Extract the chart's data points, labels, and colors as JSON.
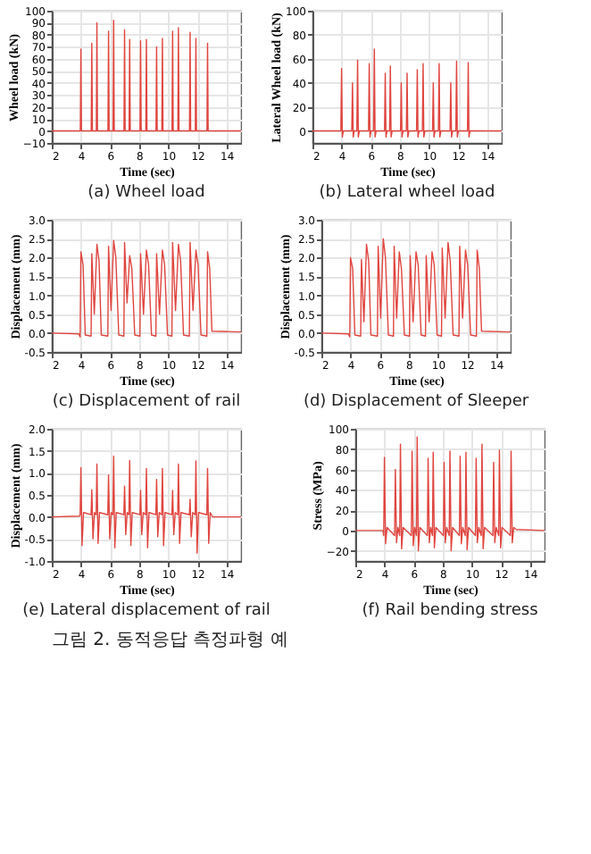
{
  "chart_data": [
    {
      "type": "line",
      "title": "(a)  Wheel  load",
      "xlabel": "Time (sec)",
      "ylabel": "Wheel load (kN)",
      "xlim": [
        2,
        15
      ],
      "xticks": [
        2,
        4,
        6,
        8,
        10,
        12,
        14
      ],
      "ylim": [
        -10,
        100
      ],
      "yticks": [
        -10,
        0,
        10,
        20,
        30,
        40,
        50,
        60,
        70,
        80,
        90,
        100
      ],
      "grid": true,
      "x": [
        2,
        3.96,
        4.0,
        4.04,
        4.71,
        4.75,
        4.79,
        5.06,
        5.1,
        5.14,
        5.86,
        5.9,
        5.94,
        6.21,
        6.25,
        6.29,
        6.96,
        7.0,
        7.04,
        7.31,
        7.35,
        7.39,
        8.06,
        8.1,
        8.14,
        8.46,
        8.5,
        8.54,
        9.16,
        9.2,
        9.24,
        9.56,
        9.6,
        9.64,
        10.26,
        10.3,
        10.34,
        10.66,
        10.7,
        10.74,
        11.46,
        11.5,
        11.54,
        11.86,
        11.9,
        11.94,
        12.66,
        12.7,
        12.74,
        15
      ],
      "series": [
        {
          "color": "#e0453f",
          "values": [
            0,
            0,
            68,
            0,
            0,
            73,
            0,
            0,
            90,
            0,
            0,
            83,
            0,
            0,
            92,
            0,
            0,
            84,
            0,
            0,
            76,
            0,
            0,
            75,
            0,
            0,
            76,
            0,
            0,
            70,
            0,
            0,
            77,
            0,
            0,
            83,
            0,
            0,
            86,
            0,
            0,
            82,
            0,
            0,
            77,
            0,
            0,
            73,
            0,
            0
          ]
        }
      ]
    },
    {
      "type": "line",
      "title": "(b)  Lateral  wheel  load",
      "xlabel": "Time (sec)",
      "ylabel": "Lateral Wheel load (kN)",
      "xlim": [
        2,
        15
      ],
      "xticks": [
        2,
        4,
        6,
        8,
        10,
        12,
        14
      ],
      "ylim": [
        -10,
        100
      ],
      "yticks": [
        0,
        20,
        40,
        60,
        80,
        100
      ],
      "grid": true,
      "x": [
        2,
        3.95,
        4.0,
        4.05,
        4.12,
        4.7,
        4.75,
        4.8,
        4.87,
        5.05,
        5.1,
        5.15,
        5.22,
        5.85,
        5.9,
        5.95,
        6.02,
        6.2,
        6.25,
        6.3,
        6.37,
        6.95,
        7.0,
        7.05,
        7.12,
        7.3,
        7.35,
        7.4,
        7.47,
        8.05,
        8.1,
        8.15,
        8.22,
        8.45,
        8.5,
        8.55,
        8.62,
        9.15,
        9.2,
        9.25,
        9.32,
        9.55,
        9.6,
        9.65,
        9.72,
        10.25,
        10.3,
        10.35,
        10.42,
        10.65,
        10.7,
        10.75,
        10.82,
        11.45,
        11.5,
        11.55,
        11.62,
        11.85,
        11.9,
        11.95,
        12.02,
        12.65,
        12.7,
        12.75,
        12.82,
        15
      ],
      "series": [
        {
          "color": "#e0453f",
          "values": [
            0,
            0,
            52,
            -5,
            0,
            0,
            40,
            -5,
            0,
            0,
            59,
            -5,
            0,
            0,
            56,
            -5,
            0,
            0,
            68,
            -5,
            0,
            0,
            48,
            -5,
            0,
            0,
            54,
            -5,
            0,
            0,
            40,
            -5,
            0,
            0,
            48,
            -5,
            0,
            0,
            51,
            -5,
            0,
            0,
            56,
            -5,
            0,
            0,
            40,
            -5,
            0,
            0,
            56,
            -5,
            0,
            0,
            40,
            -5,
            0,
            0,
            58,
            -5,
            0,
            0,
            57,
            -5,
            0,
            0
          ]
        }
      ]
    },
    {
      "type": "line",
      "title": "(c)  Displacement  of  rail",
      "xlabel": "Time (sec)",
      "ylabel": "Displacement (mm)",
      "xlim": [
        2,
        15
      ],
      "xticks": [
        2,
        4,
        6,
        8,
        10,
        12,
        14
      ],
      "ylim": [
        -0.5,
        3.0
      ],
      "yticks": [
        {
          "value": -0.5,
          "label": "-0.5"
        },
        {
          "value": 0,
          "label": "0.0"
        },
        {
          "value": 0.5,
          "label": "0.5"
        },
        {
          "value": 1,
          "label": "1.0"
        },
        {
          "value": 1.5,
          "label": "1.5"
        },
        {
          "value": 2,
          "label": "2.0"
        },
        {
          "value": 2.5,
          "label": "2.5"
        },
        {
          "value": 3,
          "label": "3.0"
        }
      ],
      "grid": true,
      "x": [
        2,
        3.85,
        3.95,
        4.0,
        4.15,
        4.3,
        4.7,
        4.75,
        4.92,
        5.1,
        5.25,
        5.4,
        5.85,
        5.9,
        6.07,
        6.25,
        6.4,
        6.6,
        6.95,
        7.0,
        7.17,
        7.35,
        7.5,
        7.7,
        8.05,
        8.1,
        8.3,
        8.5,
        8.65,
        8.85,
        9.15,
        9.2,
        9.4,
        9.6,
        9.75,
        9.95,
        10.25,
        10.3,
        10.5,
        10.7,
        10.85,
        11.05,
        11.45,
        11.5,
        11.7,
        11.9,
        12.05,
        12.25,
        12.65,
        12.7,
        12.85,
        13.0,
        15
      ],
      "series": [
        {
          "color": "#e0453f",
          "values": [
            0,
            -0.02,
            -0.1,
            2.15,
            1.8,
            -0.05,
            -0.08,
            2.1,
            0.5,
            2.35,
            1.9,
            -0.05,
            -0.08,
            2.3,
            0.6,
            2.45,
            2.0,
            -0.05,
            -0.08,
            2.4,
            0.8,
            2.05,
            1.7,
            -0.05,
            -0.08,
            2.1,
            0.5,
            2.2,
            1.8,
            -0.05,
            -0.08,
            2.1,
            0.5,
            2.2,
            1.8,
            -0.05,
            -0.08,
            2.4,
            0.6,
            2.35,
            1.9,
            -0.05,
            -0.08,
            2.4,
            0.6,
            2.2,
            1.8,
            -0.05,
            -0.08,
            2.15,
            1.7,
            0.05,
            0.03
          ]
        }
      ]
    },
    {
      "type": "line",
      "title": "(d)  Displacement  of  Sleeper",
      "xlabel": "Time (sec)",
      "ylabel": "Displacement (mm)",
      "xlim": [
        2,
        15
      ],
      "xticks": [
        2,
        4,
        6,
        8,
        10,
        12,
        14
      ],
      "ylim": [
        -0.5,
        3.0
      ],
      "yticks": [
        {
          "value": -0.5,
          "label": "-0.5"
        },
        {
          "value": 0,
          "label": "0.0"
        },
        {
          "value": 0.5,
          "label": "0.5"
        },
        {
          "value": 1,
          "label": "1.0"
        },
        {
          "value": 1.5,
          "label": "1.5"
        },
        {
          "value": 2,
          "label": "2.0"
        },
        {
          "value": 2.5,
          "label": "2.5"
        },
        {
          "value": 3,
          "label": "3.0"
        }
      ],
      "grid": true,
      "x": [
        2,
        3.85,
        3.95,
        4.0,
        4.15,
        4.3,
        4.7,
        4.75,
        4.92,
        5.1,
        5.25,
        5.4,
        5.85,
        5.9,
        6.07,
        6.25,
        6.4,
        6.6,
        6.95,
        7.0,
        7.17,
        7.35,
        7.5,
        7.7,
        8.05,
        8.1,
        8.3,
        8.5,
        8.65,
        8.85,
        9.15,
        9.2,
        9.4,
        9.6,
        9.75,
        9.95,
        10.25,
        10.3,
        10.5,
        10.7,
        10.85,
        11.05,
        11.45,
        11.5,
        11.7,
        11.9,
        12.05,
        12.25,
        12.65,
        12.7,
        12.85,
        13.0,
        15
      ],
      "series": [
        {
          "color": "#e0453f",
          "values": [
            0,
            -0.02,
            -0.1,
            2.0,
            1.7,
            -0.05,
            -0.08,
            1.95,
            0.3,
            2.35,
            1.9,
            -0.05,
            -0.08,
            2.3,
            0.4,
            2.5,
            2.0,
            -0.05,
            -0.08,
            2.3,
            0.4,
            2.15,
            1.7,
            -0.05,
            -0.08,
            2.05,
            0.3,
            2.15,
            1.8,
            -0.05,
            -0.08,
            2.05,
            0.3,
            2.15,
            1.8,
            -0.05,
            -0.08,
            2.25,
            0.4,
            2.4,
            1.9,
            -0.05,
            -0.08,
            2.3,
            0.4,
            2.2,
            1.8,
            -0.05,
            -0.08,
            2.2,
            1.7,
            0.05,
            0.03
          ]
        }
      ]
    },
    {
      "type": "line",
      "title": "(e)  Lateral  displacement  of  rail",
      "xlabel": "Time (sec)",
      "ylabel": "Displacement (mm)",
      "xlim": [
        2,
        15
      ],
      "xticks": [
        2,
        4,
        6,
        8,
        10,
        12,
        14
      ],
      "ylim": [
        -1.0,
        2.0
      ],
      "yticks": [
        {
          "value": -1,
          "label": "-1.0"
        },
        {
          "value": -0.5,
          "label": "-0.5"
        },
        {
          "value": 0,
          "label": "0.0"
        },
        {
          "value": 0.5,
          "label": "0.5"
        },
        {
          "value": 1,
          "label": "1.0"
        },
        {
          "value": 1.5,
          "label": "1.5"
        },
        {
          "value": 2,
          "label": "2.0"
        }
      ],
      "grid": true,
      "annotations": [
        "그림 2. 동적응답 측정파형 예"
      ],
      "x": [
        2,
        3.9,
        3.95,
        4.0,
        4.08,
        4.18,
        4.7,
        4.75,
        4.83,
        4.93,
        5.05,
        5.1,
        5.18,
        5.28,
        5.85,
        5.9,
        5.98,
        6.08,
        6.2,
        6.25,
        6.33,
        6.43,
        6.95,
        7.0,
        7.08,
        7.18,
        7.3,
        7.35,
        7.43,
        7.53,
        8.05,
        8.1,
        8.18,
        8.28,
        8.45,
        8.5,
        8.58,
        8.68,
        9.15,
        9.2,
        9.28,
        9.38,
        9.55,
        9.6,
        9.68,
        9.78,
        10.25,
        10.3,
        10.38,
        10.48,
        10.65,
        10.7,
        10.78,
        10.88,
        11.45,
        11.5,
        11.58,
        11.68,
        11.85,
        11.9,
        11.98,
        12.08,
        12.65,
        12.7,
        12.78,
        12.88,
        13.05,
        15
      ],
      "series": [
        {
          "color": "#e0453f",
          "values": [
            0,
            0.02,
            0.05,
            1.12,
            -0.65,
            0.1,
            0.05,
            0.62,
            -0.5,
            0.1,
            0.05,
            1.2,
            -0.6,
            0.1,
            0.05,
            0.95,
            -0.5,
            0.1,
            0.05,
            1.38,
            -0.7,
            0.1,
            0.05,
            0.7,
            -0.4,
            0.1,
            0.05,
            1.28,
            -0.65,
            0.1,
            0.05,
            0.6,
            -0.4,
            0.1,
            0.05,
            1.1,
            -0.7,
            0.1,
            0.05,
            0.85,
            -0.45,
            0.1,
            0.05,
            1.1,
            -0.65,
            0.1,
            0.05,
            0.6,
            -0.4,
            0.1,
            0.05,
            1.2,
            -0.6,
            0.1,
            0.05,
            0.4,
            -0.45,
            0.1,
            0.05,
            1.27,
            -0.82,
            0.1,
            0.05,
            1.1,
            -0.6,
            0.1,
            0,
            0
          ]
        }
      ]
    },
    {
      "type": "line",
      "title": "(f)  Rail  bending  stress",
      "xlabel": "Time (sec)",
      "ylabel": "Stress (MPa)",
      "xlim": [
        2,
        15
      ],
      "xticks": [
        2,
        4,
        6,
        8,
        10,
        12,
        14
      ],
      "ylim": [
        -30,
        100
      ],
      "yticks": [
        -20,
        0,
        20,
        40,
        60,
        80,
        100
      ],
      "grid": true,
      "x": [
        2,
        3.9,
        3.95,
        4.0,
        4.08,
        4.18,
        4.7,
        4.75,
        4.83,
        4.93,
        5.05,
        5.1,
        5.18,
        5.28,
        5.85,
        5.9,
        5.98,
        6.08,
        6.2,
        6.25,
        6.33,
        6.43,
        6.95,
        7.0,
        7.08,
        7.18,
        7.3,
        7.35,
        7.43,
        7.53,
        8.05,
        8.1,
        8.18,
        8.28,
        8.45,
        8.5,
        8.58,
        8.68,
        9.15,
        9.2,
        9.28,
        9.38,
        9.55,
        9.6,
        9.68,
        9.78,
        10.25,
        10.3,
        10.38,
        10.48,
        10.65,
        10.7,
        10.78,
        10.88,
        11.45,
        11.5,
        11.58,
        11.68,
        11.85,
        11.9,
        11.98,
        12.08,
        12.65,
        12.7,
        12.78,
        12.88,
        13.05,
        15
      ],
      "series": [
        {
          "color": "#e0453f",
          "values": [
            0,
            0,
            -5,
            72,
            -13,
            3,
            -5,
            60,
            -12,
            3,
            -5,
            85,
            -18,
            3,
            -5,
            78,
            -15,
            3,
            -5,
            92,
            -20,
            3,
            -5,
            71,
            -12,
            3,
            -5,
            77,
            -17,
            3,
            -5,
            67,
            -12,
            3,
            -5,
            78,
            -20,
            3,
            -5,
            73,
            -13,
            3,
            -5,
            77,
            -19,
            3,
            -5,
            71,
            -12,
            3,
            -5,
            85,
            -18,
            3,
            -5,
            67,
            -12,
            3,
            -5,
            79,
            -17,
            3,
            -5,
            78,
            -12,
            3,
            1,
            0
          ]
        }
      ]
    }
  ]
}
